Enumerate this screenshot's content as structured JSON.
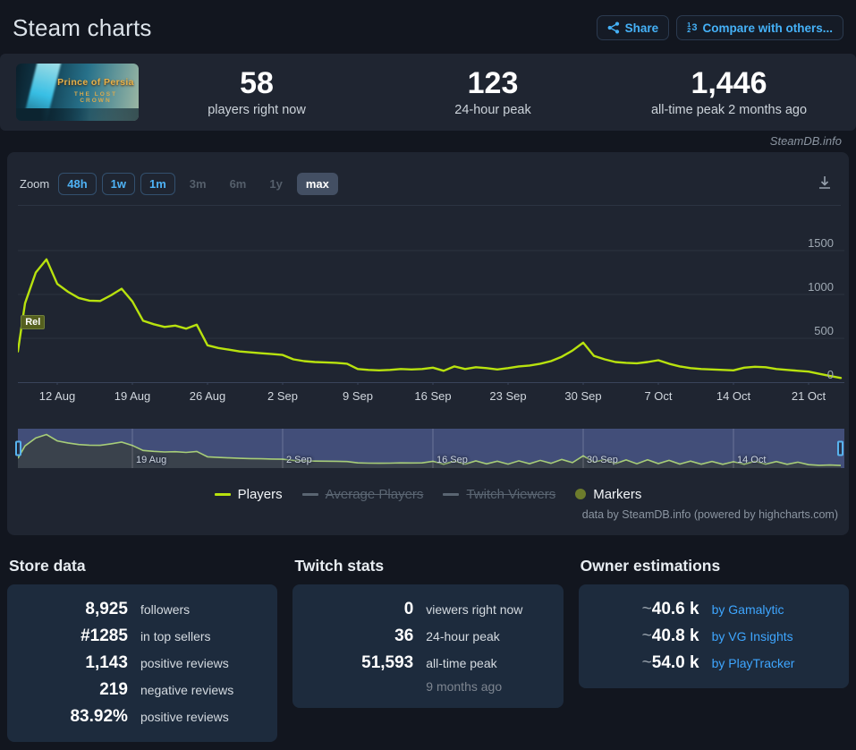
{
  "header": {
    "title": "Steam charts",
    "share_label": "Share",
    "compare_label": "Compare with others..."
  },
  "capsule": {
    "title": "Prince of Persia",
    "subtitle": "THE LOST CROWN"
  },
  "big_stats": [
    {
      "value": "58",
      "label": "players right now"
    },
    {
      "value": "123",
      "label": "24-hour peak"
    },
    {
      "value": "1,446",
      "label": "all-time peak 2 months ago"
    }
  ],
  "watermark": "SteamDB.info",
  "chart": {
    "zoom_label": "Zoom",
    "zoom_buttons": [
      {
        "label": "48h",
        "state": "active"
      },
      {
        "label": "1w",
        "state": "active"
      },
      {
        "label": "1m",
        "state": "active"
      },
      {
        "label": "3m",
        "state": "disabled"
      },
      {
        "label": "6m",
        "state": "disabled"
      },
      {
        "label": "1y",
        "state": "disabled"
      },
      {
        "label": "max",
        "state": "selected"
      }
    ],
    "credits": "data by SteamDB.info (powered by highcharts.com)"
  },
  "chart_data": {
    "type": "line",
    "title": "Steam charts",
    "x_unit": "day",
    "x_range": [
      "8 Aug",
      "24 Oct"
    ],
    "ylim": [
      0,
      2010
    ],
    "y_ticks": [
      0,
      500,
      1000,
      1500
    ],
    "x_ticks": [
      {
        "day": 4,
        "label": "12 Aug"
      },
      {
        "day": 11,
        "label": "19 Aug"
      },
      {
        "day": 18,
        "label": "26 Aug"
      },
      {
        "day": 25,
        "label": "2 Sep"
      },
      {
        "day": 32,
        "label": "9 Sep"
      },
      {
        "day": 39,
        "label": "16 Sep"
      },
      {
        "day": 46,
        "label": "23 Sep"
      },
      {
        "day": 53,
        "label": "30 Sep"
      },
      {
        "day": 60,
        "label": "7 Oct"
      },
      {
        "day": 67,
        "label": "14 Oct"
      },
      {
        "day": 74,
        "label": "21 Oct"
      }
    ],
    "series": [
      {
        "name": "Players",
        "color": "#b8e20e",
        "values": [
          350,
          900,
          1250,
          1400,
          1120,
          1030,
          960,
          930,
          925,
          990,
          1065,
          920,
          700,
          660,
          630,
          645,
          610,
          655,
          420,
          390,
          370,
          350,
          340,
          330,
          320,
          310,
          260,
          240,
          230,
          225,
          220,
          210,
          150,
          140,
          135,
          140,
          150,
          145,
          150,
          165,
          130,
          180,
          150,
          170,
          160,
          145,
          160,
          180,
          190,
          210,
          240,
          290,
          360,
          450,
          300,
          260,
          230,
          220,
          215,
          230,
          250,
          210,
          180,
          160,
          150,
          145,
          140,
          135,
          165,
          175,
          170,
          150,
          140,
          130,
          120,
          95,
          70,
          48
        ]
      }
    ],
    "release_marker": {
      "label": "Rel",
      "day": 0.6,
      "value": 580
    },
    "navigator": {
      "ylim": [
        0,
        1500
      ],
      "values": [
        350,
        900,
        1250,
        1400,
        1120,
        1030,
        960,
        930,
        925,
        990,
        1065,
        920,
        700,
        660,
        630,
        645,
        610,
        655,
        420,
        390,
        370,
        350,
        340,
        330,
        320,
        310,
        260,
        240,
        230,
        225,
        220,
        210,
        150,
        140,
        135,
        140,
        150,
        145,
        150,
        220,
        90,
        230,
        100,
        235,
        105,
        225,
        95,
        240,
        110,
        260,
        130,
        300,
        160,
        460,
        180,
        300,
        120,
        280,
        110,
        290,
        120,
        260,
        100,
        230,
        90,
        215,
        85,
        200,
        90,
        220,
        95,
        210,
        85,
        180,
        70,
        45,
        55,
        35
      ],
      "ticks": [
        {
          "day": 11,
          "label": "19 Aug"
        },
        {
          "day": 25,
          "label": "2 Sep"
        },
        {
          "day": 39,
          "label": "16 Sep"
        },
        {
          "day": 53,
          "label": "30 Sep"
        },
        {
          "day": 67,
          "label": "14 Oct"
        }
      ]
    },
    "legend": [
      {
        "label": "Players",
        "type": "line",
        "color": "#b8e20e",
        "enabled": true
      },
      {
        "label": "Average Players",
        "type": "line",
        "color": "#5a6572",
        "enabled": false
      },
      {
        "label": "Twitch Viewers",
        "type": "line",
        "color": "#5a6572",
        "enabled": false
      },
      {
        "label": "Markers",
        "type": "circle",
        "color": "#6d7c2c",
        "enabled": true
      }
    ],
    "colors": {
      "grid": "#2b3240",
      "axis": "#39445a",
      "nav_bg": "#424e79",
      "nav_area": "#3a424c",
      "nav_line": "#a7cd78",
      "handle": "#58b3ee"
    }
  },
  "panels": {
    "store": {
      "title": "Store data",
      "rows": [
        {
          "value": "8,925",
          "label": "followers"
        },
        {
          "value": "#1285",
          "label": "in top sellers"
        },
        {
          "value": "1,143",
          "label": "positive reviews"
        },
        {
          "value": "219",
          "label": "negative reviews"
        },
        {
          "value": "83.92%",
          "label": "positive reviews"
        }
      ]
    },
    "twitch": {
      "title": "Twitch stats",
      "rows": [
        {
          "value": "0",
          "label": "viewers right now"
        },
        {
          "value": "36",
          "label": "24-hour peak"
        },
        {
          "value": "51,593",
          "label": "all-time peak",
          "sub": "9 months ago"
        }
      ]
    },
    "owners": {
      "title": "Owner estimations",
      "rows": [
        {
          "prefix": "~",
          "value": "40.6 k",
          "label": "by Gamalytic"
        },
        {
          "prefix": "~",
          "value": "40.8 k",
          "label": "by VG Insights"
        },
        {
          "prefix": "~",
          "value": "54.0 k",
          "label": "by PlayTracker"
        }
      ]
    }
  }
}
